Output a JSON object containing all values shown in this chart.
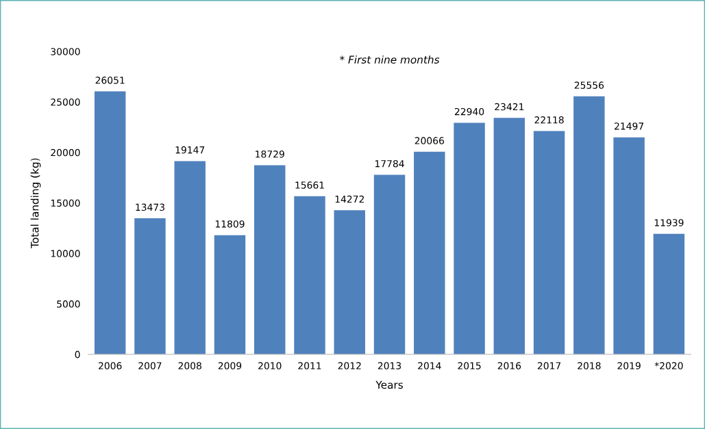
{
  "chart_data": {
    "type": "bar",
    "xlabel": "Years",
    "ylabel": "Total landing (kg)",
    "annotations": [
      "* First nine months"
    ],
    "categories": [
      "2006",
      "2007",
      "2008",
      "2009",
      "2010",
      "2011",
      "2012",
      "2013",
      "2014",
      "2015",
      "2016",
      "2017",
      "2018",
      "2019",
      "*2020"
    ],
    "values": [
      26051,
      13473,
      19147,
      11809,
      18729,
      15661,
      14272,
      17784,
      20066,
      22940,
      23421,
      22118,
      25556,
      21497,
      11939
    ],
    "color": "#4f81bd",
    "ylim": [
      0,
      30000
    ],
    "yticks": [
      0,
      5000,
      10000,
      15000,
      20000,
      25000,
      30000
    ],
    "grid": false,
    "data_labels": true
  }
}
